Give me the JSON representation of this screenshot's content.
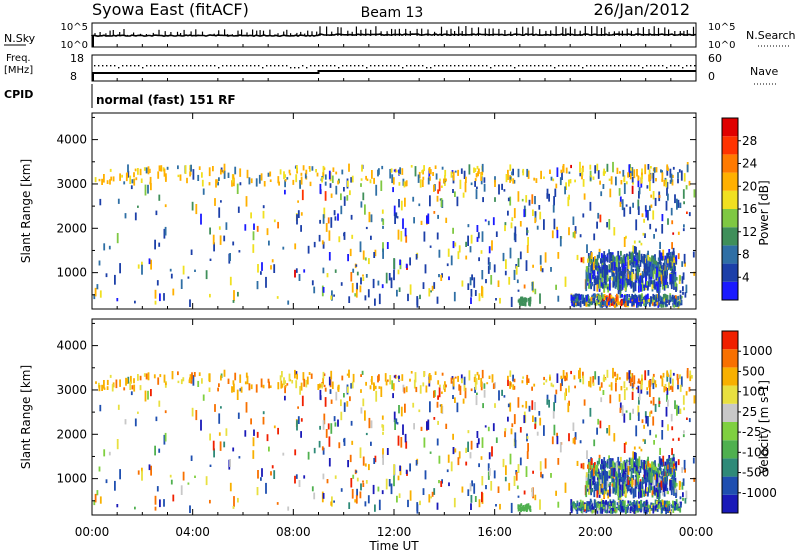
{
  "header": {
    "station": "Syowa East (fitACF)",
    "beam": "Beam 13",
    "date": "26/Jan/2012"
  },
  "panels": {
    "nsky": {
      "left_label": "N.Sky",
      "right_label": "N.Search",
      "right_ticks": [
        "10^5",
        "10^0"
      ],
      "left_ticks": [
        "10^5",
        "10^0"
      ]
    },
    "freq": {
      "left_label_1": "Freq.",
      "left_label_2": "[MHz]",
      "left_ticks": [
        "18",
        "8"
      ],
      "right_label": "Nave",
      "right_ticks": [
        "60",
        "0"
      ]
    },
    "cpid": {
      "label": "CPID",
      "text": "normal (fast) 151 RF"
    }
  },
  "colorbars": {
    "power": {
      "label": "Power [dB]",
      "ticks": [
        "28",
        "24",
        "20",
        "16",
        "12",
        "8",
        "4"
      ],
      "colors": [
        "#1a1aff",
        "#1c3fa8",
        "#2f6fa5",
        "#3f8f5a",
        "#7fc843",
        "#f0e020",
        "#ffb000",
        "#ff7a00",
        "#ff3300",
        "#e00000"
      ]
    },
    "velocity": {
      "label": "Velocity [m s-1]",
      "ticks": [
        "1000",
        "500",
        "100",
        "25",
        "-25",
        "-100",
        "-500",
        "-1000"
      ],
      "colors": [
        "#1a1ab8",
        "#1f4fb0",
        "#2f8a78",
        "#4fb04f",
        "#7fd040",
        "#c8c8c8",
        "#e8e040",
        "#f8b000",
        "#f87000",
        "#f02000"
      ]
    }
  },
  "chart_data": [
    {
      "type": "heatmap",
      "name": "power",
      "ylabel": "Slant Range [km]",
      "yticks": [
        "1000",
        "2000",
        "3000",
        "4000"
      ],
      "ylim": [
        180,
        4600
      ],
      "xlim_hours": [
        0,
        24
      ]
    },
    {
      "type": "heatmap",
      "name": "velocity",
      "ylabel": "Slant Range [km]",
      "yticks": [
        "1000",
        "2000",
        "3000",
        "4000"
      ],
      "ylim": [
        180,
        4600
      ],
      "xlim_hours": [
        0,
        24
      ],
      "xlabel": "Time UT",
      "xticks": [
        "00:00",
        "04:00",
        "08:00",
        "12:00",
        "16:00",
        "20:00",
        "00:00"
      ]
    }
  ]
}
